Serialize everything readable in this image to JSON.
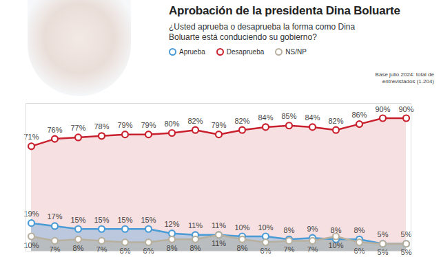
{
  "chart_data": {
    "type": "line",
    "title": "Aprobación de la presidenta Dina Boluarte",
    "subtitle": "¿Usted aprueba o desaprueba la forma como Dina Boluarte está conduciendo su gobierno?",
    "note": "Base julio 2024: total de entrevistados (1.204)",
    "categories": [
      null,
      null,
      null,
      null,
      null,
      null,
      null,
      null,
      null,
      null,
      null,
      null,
      null,
      null,
      null,
      null,
      null
    ],
    "ylim": [
      0,
      100
    ],
    "tick_labels": false,
    "grid": false,
    "legend": "top",
    "data_labels": true,
    "marker": "circle",
    "series": [
      {
        "name": "Aprueba",
        "color": "#4a9bd6",
        "values": [
          19,
          17,
          15,
          15,
          15,
          15,
          12,
          11,
          11,
          10,
          10,
          8,
          9,
          8,
          8,
          5,
          5
        ],
        "value_labels": [
          "19%",
          "17%",
          "15%",
          "15%",
          "15%",
          "15%",
          "12%",
          "11%",
          "11%",
          "10%",
          "10%",
          "8%",
          "9%",
          "8%",
          "8%",
          "5%",
          "5%"
        ]
      },
      {
        "name": "Desaprueba",
        "color": "#c9202e",
        "values": [
          71,
          76,
          77,
          78,
          79,
          79,
          80,
          82,
          79,
          82,
          84,
          85,
          84,
          82,
          86,
          90,
          90
        ],
        "value_labels": [
          "71%",
          "76%",
          "77%",
          "78%",
          "79%",
          "79%",
          "80%",
          "82%",
          "79%",
          "82%",
          "84%",
          "85%",
          "84%",
          "82%",
          "86%",
          "90%",
          "90%"
        ]
      },
      {
        "name": "NS/NP",
        "color": "#b8b09e",
        "values": [
          10,
          7,
          8,
          7,
          6,
          6,
          8,
          8,
          11,
          8,
          6,
          7,
          7,
          10,
          6,
          5,
          5
        ],
        "value_labels": [
          "10%",
          "7%",
          "8%",
          "7%",
          "6%",
          "6%",
          "8%",
          "8%",
          "11%",
          "8%",
          "6%",
          "7%",
          "7%",
          "10%",
          "6%",
          "5%",
          "5%"
        ]
      }
    ]
  }
}
